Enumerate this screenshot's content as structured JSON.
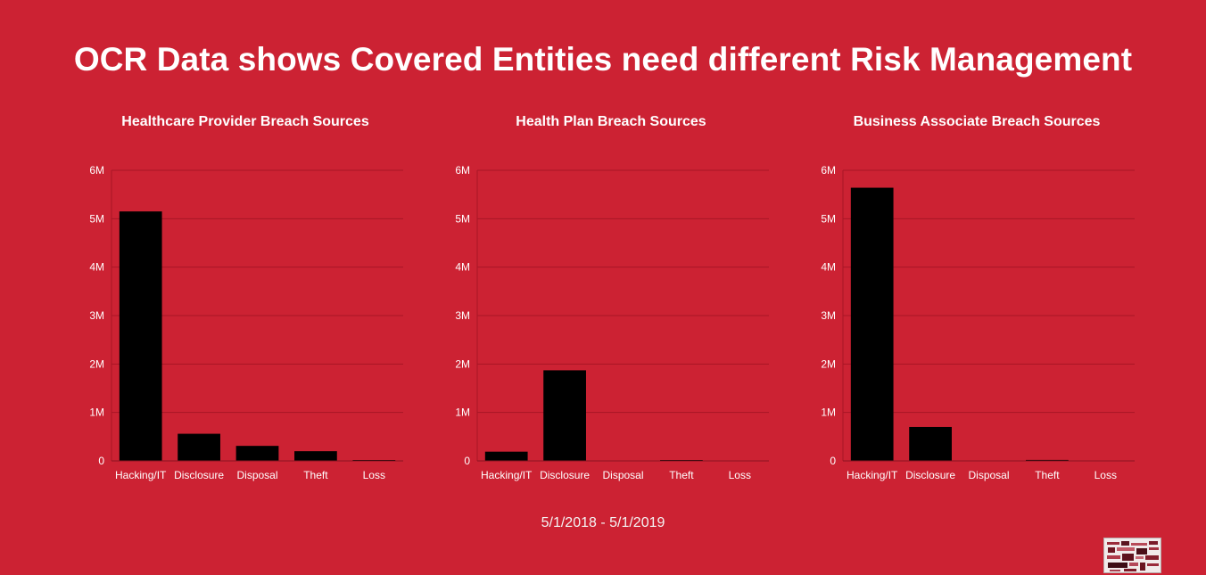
{
  "page": {
    "title": "OCR Data shows Covered Entities need different Risk Management",
    "date_range": "5/1/2018 - 5/1/2019"
  },
  "colors": {
    "background": "#cc2233",
    "bar": "#000000",
    "text": "#ffffff",
    "gridline": "#a81626"
  },
  "chart_data": [
    {
      "type": "bar",
      "title": "Healthcare Provider Breach Sources",
      "categories": [
        "Hacking/IT",
        "Disclosure",
        "Disposal",
        "Theft",
        "Loss"
      ],
      "values": [
        5150000,
        560000,
        310000,
        200000,
        15000
      ],
      "ylim": [
        0,
        6000000
      ],
      "yticks": [
        {
          "value": 0,
          "label": "0"
        },
        {
          "value": 1000000,
          "label": "1M"
        },
        {
          "value": 2000000,
          "label": "2M"
        },
        {
          "value": 3000000,
          "label": "3M"
        },
        {
          "value": 4000000,
          "label": "4M"
        },
        {
          "value": 5000000,
          "label": "5M"
        },
        {
          "value": 6000000,
          "label": "6M"
        }
      ],
      "grid": true,
      "legend": "none"
    },
    {
      "type": "bar",
      "title": "Health Plan Breach Sources",
      "categories": [
        "Hacking/IT",
        "Disclosure",
        "Disposal",
        "Theft",
        "Loss"
      ],
      "values": [
        190000,
        1870000,
        0,
        8000,
        0
      ],
      "ylim": [
        0,
        6000000
      ],
      "yticks": [
        {
          "value": 0,
          "label": "0"
        },
        {
          "value": 1000000,
          "label": "1M"
        },
        {
          "value": 2000000,
          "label": "2M"
        },
        {
          "value": 3000000,
          "label": "3M"
        },
        {
          "value": 4000000,
          "label": "4M"
        },
        {
          "value": 5000000,
          "label": "5M"
        },
        {
          "value": 6000000,
          "label": "6M"
        }
      ],
      "grid": true,
      "legend": "none"
    },
    {
      "type": "bar",
      "title": "Business Associate Breach Sources",
      "categories": [
        "Hacking/IT",
        "Disclosure",
        "Disposal",
        "Theft",
        "Loss"
      ],
      "values": [
        5640000,
        700000,
        0,
        20000,
        0
      ],
      "ylim": [
        0,
        6000000
      ],
      "yticks": [
        {
          "value": 0,
          "label": "0"
        },
        {
          "value": 1000000,
          "label": "1M"
        },
        {
          "value": 2000000,
          "label": "2M"
        },
        {
          "value": 3000000,
          "label": "3M"
        },
        {
          "value": 4000000,
          "label": "4M"
        },
        {
          "value": 5000000,
          "label": "5M"
        },
        {
          "value": 6000000,
          "label": "6M"
        }
      ],
      "grid": true,
      "legend": "none"
    }
  ],
  "logo": {
    "icon": "word-cloud-logo"
  }
}
